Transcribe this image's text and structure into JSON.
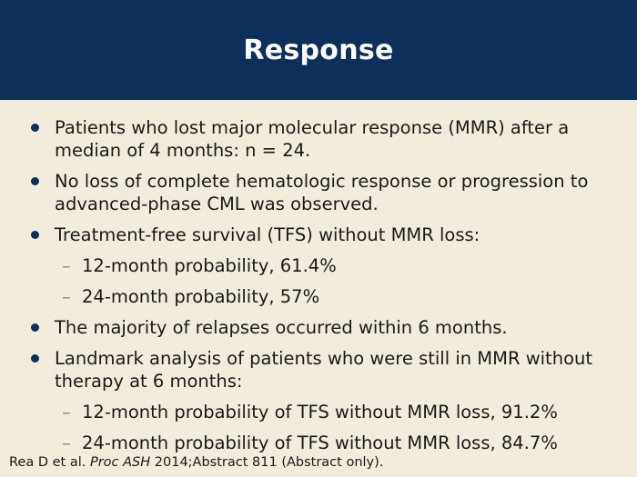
{
  "slide": {
    "title": "Response"
  },
  "bullets": [
    "Patients who lost major molecular response (MMR) after a median of 4 months: n = 24.",
    "No loss of complete hematologic response or progression to advanced-phase CML was observed.",
    "Treatment-free survival (TFS) without MMR loss:",
    "12-month probability, 61.4%",
    "24-month probability, 57%",
    "The majority of relapses occurred within 6 months.",
    "Landmark analysis of patients who were still in MMR without therapy at 6 months:",
    "12-month probability of TFS without MMR loss, 91.2%",
    "24-month probability of TFS without MMR loss, 84.7%"
  ],
  "sub_marker": "–",
  "citation": {
    "authors": "Rea D et al.",
    "journal": "Proc ASH",
    "details": "2014;Abstract 811 (Abstract only)."
  },
  "colors": {
    "header_bg": "#0d2f5b",
    "slide_bg": "#f2ecdc",
    "bullet_dot": "#0d2f5b",
    "sub_dash": "#8a8a8a"
  }
}
